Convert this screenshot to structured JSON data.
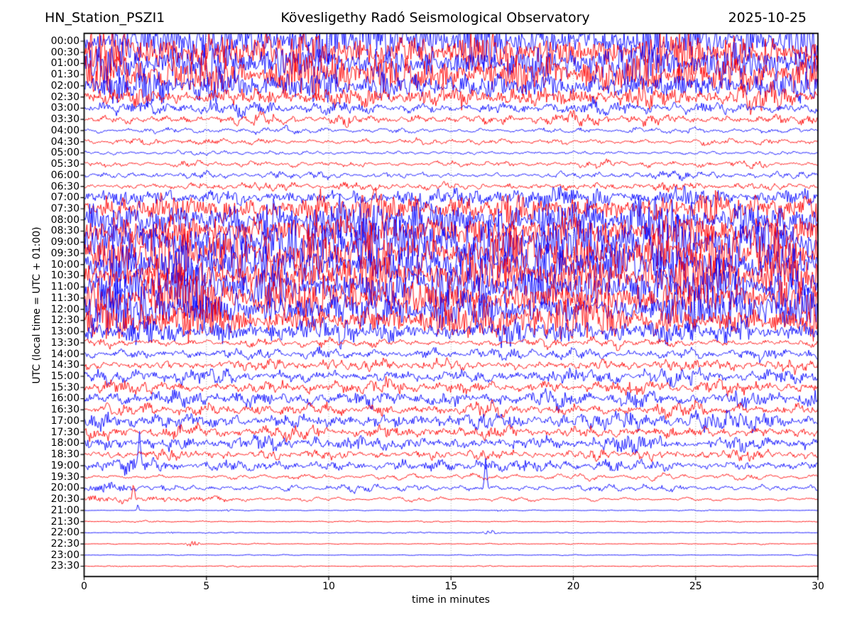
{
  "chart_data": {
    "type": "line",
    "subtype": "helicorder-seismogram",
    "title_left": "HN_Station_PSZI1",
    "title_center": "Kövesligethy Radó Seismological Observatory",
    "title_right": "2025-10-25",
    "xlabel": "time in minutes",
    "ylabel": "UTC (local time = UTC + 01:00)",
    "x_range_minutes": [
      0,
      30
    ],
    "x_ticks": [
      0,
      5,
      10,
      15,
      20,
      25,
      30
    ],
    "grid_minutes": [
      5,
      10,
      15,
      20,
      25
    ],
    "grid_style": "dotted",
    "legend": "none",
    "rows": [
      {
        "label": "00:00",
        "color": "#0000ff",
        "amp": 45,
        "hf": 0.8,
        "events": []
      },
      {
        "label": "00:30",
        "color": "#ff0000",
        "amp": 45,
        "hf": 0.8,
        "events": []
      },
      {
        "label": "01:00",
        "color": "#0000ff",
        "amp": 45,
        "hf": 0.8,
        "events": []
      },
      {
        "label": "01:30",
        "color": "#ff0000",
        "amp": 40,
        "hf": 0.8,
        "events": []
      },
      {
        "label": "02:00",
        "color": "#0000ff",
        "amp": 34,
        "hf": 0.75,
        "events": []
      },
      {
        "label": "02:30",
        "color": "#ff0000",
        "amp": 24,
        "hf": 0.7,
        "events": []
      },
      {
        "label": "03:00",
        "color": "#0000ff",
        "amp": 16,
        "hf": 0.6,
        "events": []
      },
      {
        "label": "03:30",
        "color": "#ff0000",
        "amp": 12,
        "hf": 0.55,
        "events": []
      },
      {
        "label": "04:00",
        "color": "#0000ff",
        "amp": 7,
        "hf": 0.45,
        "events": []
      },
      {
        "label": "04:30",
        "color": "#ff0000",
        "amp": 7,
        "hf": 0.5,
        "events": []
      },
      {
        "label": "05:00",
        "color": "#0000ff",
        "amp": 5,
        "hf": 0.45,
        "events": []
      },
      {
        "label": "05:30",
        "color": "#ff0000",
        "amp": 7,
        "hf": 0.5,
        "events": []
      },
      {
        "label": "06:00",
        "color": "#0000ff",
        "amp": 8,
        "hf": 0.5,
        "events": []
      },
      {
        "label": "06:30",
        "color": "#ff0000",
        "amp": 9,
        "hf": 0.55,
        "events": []
      },
      {
        "label": "07:00",
        "color": "#0000ff",
        "amp": 22,
        "hf": 0.7,
        "events": []
      },
      {
        "label": "07:30",
        "color": "#ff0000",
        "amp": 34,
        "hf": 0.75,
        "events": []
      },
      {
        "label": "08:00",
        "color": "#0000ff",
        "amp": 45,
        "hf": 0.8,
        "events": []
      },
      {
        "label": "08:30",
        "color": "#ff0000",
        "amp": 50,
        "hf": 0.85,
        "events": []
      },
      {
        "label": "09:00",
        "color": "#0000ff",
        "amp": 52,
        "hf": 0.85,
        "events": []
      },
      {
        "label": "09:30",
        "color": "#ff0000",
        "amp": 52,
        "hf": 0.85,
        "events": []
      },
      {
        "label": "10:00",
        "color": "#0000ff",
        "amp": 52,
        "hf": 0.85,
        "events": []
      },
      {
        "label": "10:30",
        "color": "#ff0000",
        "amp": 50,
        "hf": 0.85,
        "events": []
      },
      {
        "label": "11:00",
        "color": "#0000ff",
        "amp": 50,
        "hf": 0.85,
        "events": []
      },
      {
        "label": "11:30",
        "color": "#ff0000",
        "amp": 48,
        "hf": 0.85,
        "events": []
      },
      {
        "label": "12:00",
        "color": "#0000ff",
        "amp": 45,
        "hf": 0.8,
        "events": []
      },
      {
        "label": "12:30",
        "color": "#ff0000",
        "amp": 40,
        "hf": 0.8,
        "events": []
      },
      {
        "label": "13:00",
        "color": "#0000ff",
        "amp": 28,
        "hf": 0.7,
        "events": []
      },
      {
        "label": "13:30",
        "color": "#ff0000",
        "amp": 10,
        "hf": 0.5,
        "events": []
      },
      {
        "label": "14:00",
        "color": "#0000ff",
        "amp": 13,
        "hf": 0.55,
        "events": []
      },
      {
        "label": "14:30",
        "color": "#ff0000",
        "amp": 13,
        "hf": 0.55,
        "events": []
      },
      {
        "label": "15:00",
        "color": "#0000ff",
        "amp": 16,
        "hf": 0.6,
        "events": []
      },
      {
        "label": "15:30",
        "color": "#ff0000",
        "amp": 15,
        "hf": 0.6,
        "events": []
      },
      {
        "label": "16:00",
        "color": "#0000ff",
        "amp": 20,
        "hf": 0.65,
        "events": []
      },
      {
        "label": "16:30",
        "color": "#ff0000",
        "amp": 16,
        "hf": 0.6,
        "events": []
      },
      {
        "label": "17:00",
        "color": "#0000ff",
        "amp": 20,
        "hf": 0.65,
        "events": []
      },
      {
        "label": "17:30",
        "color": "#ff0000",
        "amp": 14,
        "hf": 0.6,
        "events": []
      },
      {
        "label": "18:00",
        "color": "#0000ff",
        "amp": 18,
        "hf": 0.65,
        "events": []
      },
      {
        "label": "18:30",
        "color": "#ff0000",
        "amp": 11,
        "hf": 0.55,
        "events": []
      },
      {
        "label": "19:00",
        "color": "#0000ff",
        "amp": 14,
        "hf": 0.6,
        "events": [
          {
            "type": "spike",
            "t": 2.26,
            "a": -50,
            "w": 0.12
          }
        ]
      },
      {
        "label": "19:30",
        "color": "#ff0000",
        "amp": 6,
        "hf": 0.45,
        "events": []
      },
      {
        "label": "20:00",
        "color": "#0000ff",
        "amp": 8,
        "hf": 0.5,
        "events": [
          {
            "type": "spike",
            "t": 16.42,
            "a": -45,
            "w": 0.1
          },
          {
            "type": "burst",
            "t": 0.9,
            "a": 6,
            "w": 1.0
          }
        ]
      },
      {
        "label": "20:30",
        "color": "#ff0000",
        "amp": 4,
        "hf": 0.4,
        "events": [
          {
            "type": "spike",
            "t": 2.02,
            "a": -22,
            "w": 0.08
          },
          {
            "type": "burst",
            "t": 0.5,
            "a": 3,
            "w": 6.0
          }
        ]
      },
      {
        "label": "21:00",
        "color": "#0000ff",
        "amp": 1.1,
        "hf": 0.5,
        "events": [
          {
            "type": "spike",
            "t": 2.2,
            "a": -9,
            "w": 0.06
          },
          {
            "type": "burst",
            "t": 5.8,
            "a": 1.6,
            "w": 0.35
          },
          {
            "type": "burst",
            "t": 17.0,
            "a": 1.6,
            "w": 0.3
          }
        ]
      },
      {
        "label": "21:30",
        "color": "#ff0000",
        "amp": 1.4,
        "hf": 0.5,
        "events": [
          {
            "type": "burst",
            "t": 2.6,
            "a": 1.2,
            "w": 0.5
          }
        ]
      },
      {
        "label": "22:00",
        "color": "#0000ff",
        "amp": 1.1,
        "hf": 0.5,
        "events": [
          {
            "type": "burst",
            "t": 3.5,
            "a": 1.2,
            "w": 0.2
          },
          {
            "type": "burst",
            "t": 16.6,
            "a": 3.2,
            "w": 0.3
          }
        ]
      },
      {
        "label": "22:30",
        "color": "#ff0000",
        "amp": 1.2,
        "hf": 0.5,
        "events": [
          {
            "type": "burst",
            "t": 4.45,
            "a": 3.5,
            "w": 0.35
          }
        ]
      },
      {
        "label": "23:00",
        "color": "#0000ff",
        "amp": 1.0,
        "hf": 0.5,
        "events": []
      },
      {
        "label": "23:30",
        "color": "#ff0000",
        "amp": 1.2,
        "hf": 0.5,
        "events": [
          {
            "type": "burst",
            "t": 1.5,
            "a": 1.0,
            "w": 0.5
          }
        ]
      }
    ]
  },
  "colors": {
    "trace_blue": "#0000ff",
    "trace_red": "#ff0000",
    "grid": "#999999",
    "frame": "#000000",
    "background": "#ffffff",
    "text": "#000000"
  }
}
